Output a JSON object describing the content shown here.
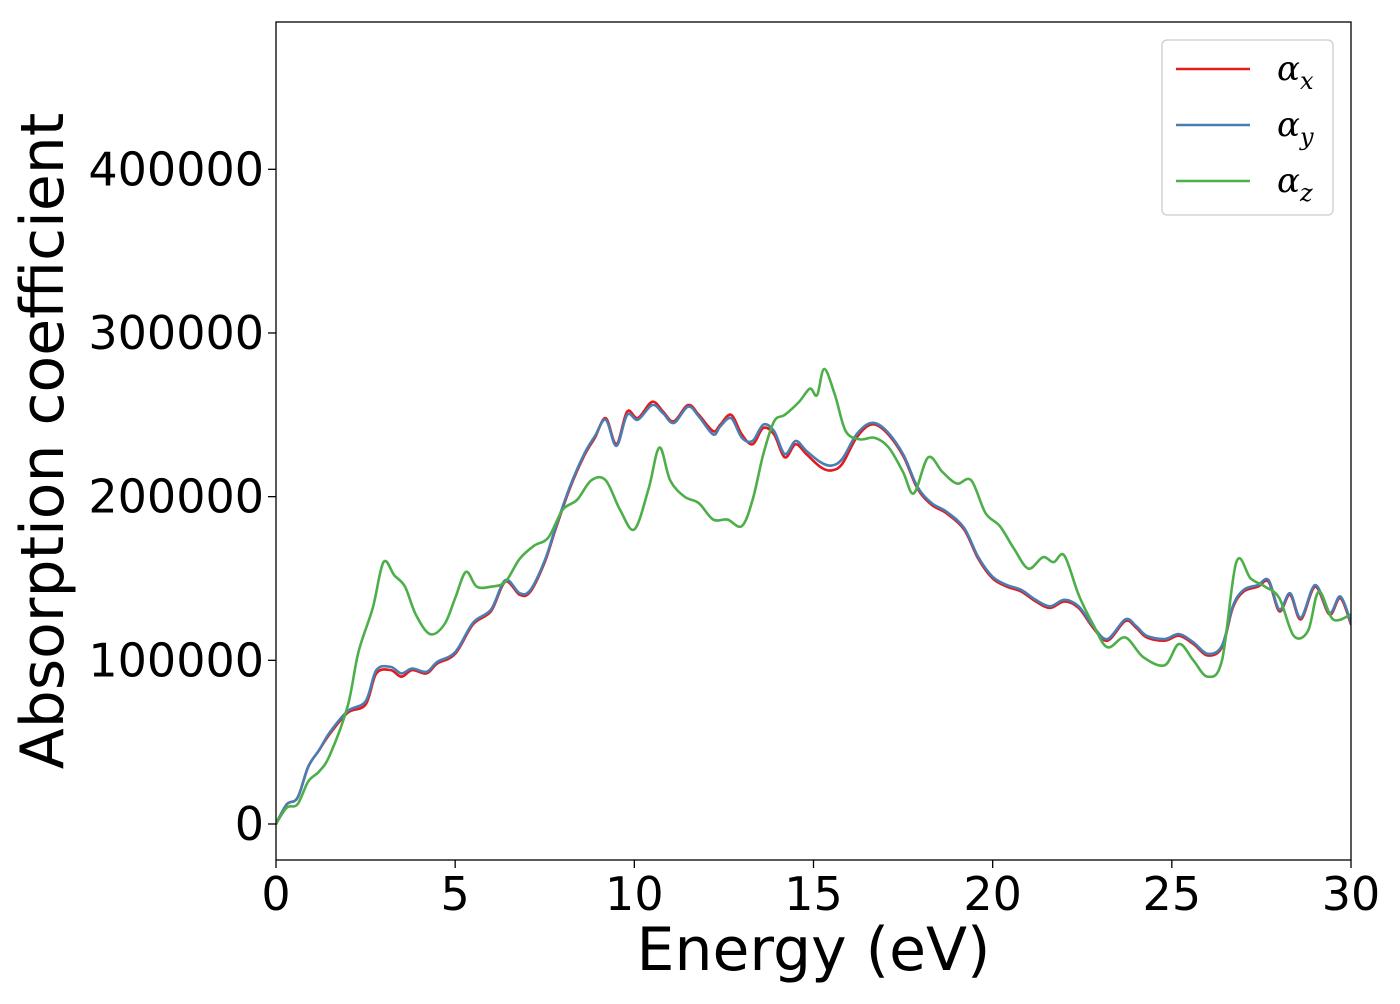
{
  "chart_data": {
    "type": "line",
    "title": "",
    "xlabel": "Energy (eV)",
    "ylabel": "Absorption coefficient",
    "xlim": [
      0,
      30
    ],
    "ylim": [
      -22000,
      490000
    ],
    "xticks": [
      0,
      5,
      10,
      15,
      20,
      25,
      30
    ],
    "xtick_labels": [
      "0",
      "5",
      "10",
      "15",
      "20",
      "25",
      "30"
    ],
    "yticks": [
      0,
      100000,
      200000,
      300000,
      400000
    ],
    "ytick_labels": [
      "0",
      "100000",
      "200000",
      "300000",
      "400000"
    ],
    "grid": false,
    "legend_position": "top-right",
    "series": [
      {
        "name": "αx",
        "legend_base": "α",
        "legend_sub": "x",
        "color": "#e41a1c",
        "points": [
          [
            0,
            0
          ],
          [
            0.3,
            12000
          ],
          [
            0.6,
            16000
          ],
          [
            0.9,
            35000
          ],
          [
            1.2,
            45000
          ],
          [
            1.5,
            55000
          ],
          [
            2.0,
            68000
          ],
          [
            2.5,
            73000
          ],
          [
            2.8,
            92000
          ],
          [
            3.2,
            94000
          ],
          [
            3.5,
            90000
          ],
          [
            3.8,
            94000
          ],
          [
            4.2,
            92000
          ],
          [
            4.5,
            98000
          ],
          [
            5.0,
            104000
          ],
          [
            5.5,
            122000
          ],
          [
            6.0,
            130000
          ],
          [
            6.4,
            148000
          ],
          [
            6.8,
            140000
          ],
          [
            7.1,
            142000
          ],
          [
            7.5,
            160000
          ],
          [
            7.8,
            180000
          ],
          [
            8.2,
            205000
          ],
          [
            8.6,
            225000
          ],
          [
            8.9,
            236000
          ],
          [
            9.2,
            248000
          ],
          [
            9.5,
            232000
          ],
          [
            9.8,
            252000
          ],
          [
            10.1,
            248000
          ],
          [
            10.5,
            258000
          ],
          [
            10.8,
            252000
          ],
          [
            11.1,
            246000
          ],
          [
            11.5,
            256000
          ],
          [
            11.8,
            250000
          ],
          [
            12.2,
            240000
          ],
          [
            12.4,
            244000
          ],
          [
            12.7,
            250000
          ],
          [
            13.0,
            238000
          ],
          [
            13.3,
            232000
          ],
          [
            13.6,
            242000
          ],
          [
            13.9,
            238000
          ],
          [
            14.2,
            224000
          ],
          [
            14.5,
            232000
          ],
          [
            14.8,
            226000
          ],
          [
            15.2,
            218000
          ],
          [
            15.5,
            216000
          ],
          [
            15.8,
            220000
          ],
          [
            16.2,
            236000
          ],
          [
            16.6,
            244000
          ],
          [
            17.0,
            240000
          ],
          [
            17.5,
            225000
          ],
          [
            17.9,
            205000
          ],
          [
            18.3,
            195000
          ],
          [
            18.7,
            190000
          ],
          [
            19.2,
            180000
          ],
          [
            19.6,
            162000
          ],
          [
            20.0,
            150000
          ],
          [
            20.4,
            145000
          ],
          [
            20.8,
            142000
          ],
          [
            21.2,
            136000
          ],
          [
            21.6,
            132000
          ],
          [
            22.0,
            136000
          ],
          [
            22.4,
            132000
          ],
          [
            22.8,
            120000
          ],
          [
            23.2,
            112000
          ],
          [
            23.7,
            124000
          ],
          [
            24.0,
            120000
          ],
          [
            24.3,
            114000
          ],
          [
            24.8,
            112000
          ],
          [
            25.2,
            115000
          ],
          [
            25.6,
            110000
          ],
          [
            26.0,
            103000
          ],
          [
            26.4,
            108000
          ],
          [
            26.7,
            132000
          ],
          [
            27.0,
            142000
          ],
          [
            27.4,
            145000
          ],
          [
            27.7,
            148000
          ],
          [
            28.0,
            130000
          ],
          [
            28.3,
            140000
          ],
          [
            28.6,
            125000
          ],
          [
            29.0,
            145000
          ],
          [
            29.4,
            128000
          ],
          [
            29.7,
            138000
          ],
          [
            30.0,
            122000
          ]
        ]
      },
      {
        "name": "αy",
        "legend_base": "α",
        "legend_sub": "y",
        "color": "#4a7eb3",
        "points": [
          [
            0,
            0
          ],
          [
            0.3,
            12000
          ],
          [
            0.6,
            16000
          ],
          [
            0.9,
            35000
          ],
          [
            1.2,
            45000
          ],
          [
            1.5,
            56000
          ],
          [
            2.0,
            69000
          ],
          [
            2.5,
            75000
          ],
          [
            2.8,
            94000
          ],
          [
            3.2,
            96000
          ],
          [
            3.5,
            92000
          ],
          [
            3.8,
            95000
          ],
          [
            4.2,
            93000
          ],
          [
            4.5,
            99000
          ],
          [
            5.0,
            105000
          ],
          [
            5.5,
            123000
          ],
          [
            6.0,
            131000
          ],
          [
            6.4,
            149000
          ],
          [
            6.8,
            141000
          ],
          [
            7.1,
            143000
          ],
          [
            7.5,
            161000
          ],
          [
            7.8,
            181000
          ],
          [
            8.2,
            206000
          ],
          [
            8.6,
            226000
          ],
          [
            8.9,
            237000
          ],
          [
            9.2,
            247000
          ],
          [
            9.5,
            231000
          ],
          [
            9.8,
            250000
          ],
          [
            10.1,
            247000
          ],
          [
            10.5,
            256000
          ],
          [
            10.8,
            251000
          ],
          [
            11.1,
            245000
          ],
          [
            11.5,
            255000
          ],
          [
            11.8,
            249000
          ],
          [
            12.2,
            238000
          ],
          [
            12.4,
            243000
          ],
          [
            12.7,
            248000
          ],
          [
            13.0,
            236000
          ],
          [
            13.3,
            234000
          ],
          [
            13.6,
            244000
          ],
          [
            13.9,
            240000
          ],
          [
            14.2,
            226000
          ],
          [
            14.5,
            234000
          ],
          [
            14.8,
            228000
          ],
          [
            15.2,
            221000
          ],
          [
            15.5,
            219000
          ],
          [
            15.8,
            223000
          ],
          [
            16.2,
            238000
          ],
          [
            16.6,
            245000
          ],
          [
            17.0,
            241000
          ],
          [
            17.5,
            226000
          ],
          [
            17.9,
            206000
          ],
          [
            18.3,
            196000
          ],
          [
            18.7,
            191000
          ],
          [
            19.2,
            181000
          ],
          [
            19.6,
            163000
          ],
          [
            20.0,
            151000
          ],
          [
            20.4,
            146000
          ],
          [
            20.8,
            143000
          ],
          [
            21.2,
            137000
          ],
          [
            21.6,
            133000
          ],
          [
            22.0,
            137000
          ],
          [
            22.4,
            133000
          ],
          [
            22.8,
            121000
          ],
          [
            23.2,
            113000
          ],
          [
            23.7,
            125000
          ],
          [
            24.0,
            121000
          ],
          [
            24.3,
            115000
          ],
          [
            24.8,
            113000
          ],
          [
            25.2,
            116000
          ],
          [
            25.6,
            111000
          ],
          [
            26.0,
            104000
          ],
          [
            26.4,
            109000
          ],
          [
            26.7,
            133000
          ],
          [
            27.0,
            143000
          ],
          [
            27.4,
            146000
          ],
          [
            27.7,
            149000
          ],
          [
            28.0,
            131000
          ],
          [
            28.3,
            141000
          ],
          [
            28.6,
            126000
          ],
          [
            29.0,
            146000
          ],
          [
            29.4,
            129000
          ],
          [
            29.7,
            139000
          ],
          [
            30.0,
            123000
          ]
        ]
      },
      {
        "name": "αz",
        "legend_base": "α",
        "legend_sub": "z",
        "color": "#4daf4a",
        "points": [
          [
            0,
            0
          ],
          [
            0.3,
            10000
          ],
          [
            0.6,
            12000
          ],
          [
            0.9,
            26000
          ],
          [
            1.2,
            32000
          ],
          [
            1.5,
            42000
          ],
          [
            2.0,
            72000
          ],
          [
            2.3,
            105000
          ],
          [
            2.7,
            132000
          ],
          [
            3.0,
            160000
          ],
          [
            3.3,
            152000
          ],
          [
            3.6,
            145000
          ],
          [
            3.9,
            128000
          ],
          [
            4.3,
            116000
          ],
          [
            4.7,
            122000
          ],
          [
            5.0,
            138000
          ],
          [
            5.3,
            154000
          ],
          [
            5.6,
            145000
          ],
          [
            6.0,
            145000
          ],
          [
            6.4,
            148000
          ],
          [
            6.8,
            162000
          ],
          [
            7.2,
            170000
          ],
          [
            7.6,
            175000
          ],
          [
            8.0,
            192000
          ],
          [
            8.4,
            198000
          ],
          [
            8.8,
            210000
          ],
          [
            9.2,
            210000
          ],
          [
            9.6,
            192000
          ],
          [
            10.0,
            180000
          ],
          [
            10.4,
            205000
          ],
          [
            10.7,
            230000
          ],
          [
            11.0,
            210000
          ],
          [
            11.4,
            200000
          ],
          [
            11.8,
            196000
          ],
          [
            12.2,
            186000
          ],
          [
            12.6,
            186000
          ],
          [
            13.0,
            182000
          ],
          [
            13.3,
            198000
          ],
          [
            13.6,
            226000
          ],
          [
            13.9,
            246000
          ],
          [
            14.2,
            250000
          ],
          [
            14.6,
            258000
          ],
          [
            14.9,
            266000
          ],
          [
            15.1,
            262000
          ],
          [
            15.3,
            278000
          ],
          [
            15.6,
            262000
          ],
          [
            15.9,
            240000
          ],
          [
            16.3,
            235000
          ],
          [
            16.7,
            236000
          ],
          [
            17.1,
            230000
          ],
          [
            17.5,
            215000
          ],
          [
            17.8,
            202000
          ],
          [
            18.2,
            224000
          ],
          [
            18.6,
            215000
          ],
          [
            19.0,
            208000
          ],
          [
            19.4,
            210000
          ],
          [
            19.8,
            190000
          ],
          [
            20.2,
            182000
          ],
          [
            20.6,
            168000
          ],
          [
            21.0,
            156000
          ],
          [
            21.4,
            163000
          ],
          [
            21.7,
            160000
          ],
          [
            22.0,
            164000
          ],
          [
            22.4,
            140000
          ],
          [
            22.8,
            122000
          ],
          [
            23.2,
            108000
          ],
          [
            23.7,
            114000
          ],
          [
            24.2,
            102000
          ],
          [
            24.8,
            97000
          ],
          [
            25.2,
            110000
          ],
          [
            25.6,
            100000
          ],
          [
            26.0,
            90000
          ],
          [
            26.4,
            100000
          ],
          [
            26.8,
            160000
          ],
          [
            27.2,
            150000
          ],
          [
            27.6,
            145000
          ],
          [
            28.0,
            138000
          ],
          [
            28.4,
            115000
          ],
          [
            28.8,
            118000
          ],
          [
            29.1,
            142000
          ],
          [
            29.5,
            125000
          ],
          [
            30.0,
            128000
          ]
        ]
      }
    ]
  }
}
